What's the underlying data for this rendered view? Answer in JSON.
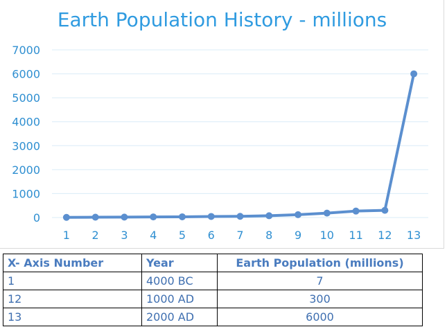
{
  "chart_data": {
    "type": "line",
    "title": "Earth Population History - millions",
    "x": [
      1,
      2,
      3,
      4,
      5,
      6,
      7,
      8,
      9,
      10,
      11,
      12,
      13
    ],
    "series": [
      {
        "values": [
          7,
          14,
          18,
          27,
          30,
          45,
          50,
          75,
          120,
          185,
          270,
          300,
          6000
        ]
      }
    ],
    "ylim": [
      0,
      7000
    ],
    "yticks": [
      0,
      1000,
      2000,
      3000,
      4000,
      5000,
      6000,
      7000
    ],
    "grid": true,
    "color": "#5b8fcf"
  },
  "table": {
    "headers": [
      "X- Axis Number",
      "Year",
      "Earth Population (millions)"
    ],
    "rows": [
      [
        "1",
        "4000 BC",
        "7"
      ],
      [
        "12",
        "1000 AD",
        "300"
      ],
      [
        "13",
        "2000 AD",
        "6000"
      ]
    ]
  }
}
